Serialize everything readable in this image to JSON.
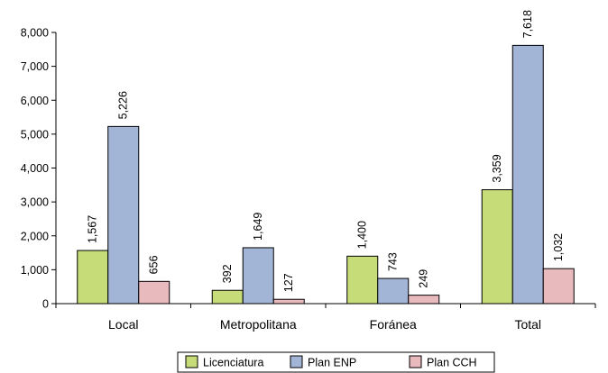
{
  "chart_data": {
    "type": "bar",
    "categories": [
      "Local",
      "Metropolitana",
      "Foránea",
      "Total"
    ],
    "series": [
      {
        "name": "Licenciatura",
        "values": [
          1567,
          392,
          1400,
          3359
        ],
        "labels": [
          "1,567",
          "392",
          "1,400",
          "3,359"
        ],
        "color": "#c5dc78"
      },
      {
        "name": "Plan ENP",
        "values": [
          5226,
          1649,
          743,
          7618
        ],
        "labels": [
          "5,226",
          "1,649",
          "743",
          "7,618"
        ],
        "color": "#a3b5d6"
      },
      {
        "name": "Plan CCH",
        "values": [
          656,
          127,
          249,
          1032
        ],
        "labels": [
          "656",
          "127",
          "249",
          "1,032"
        ],
        "color": "#e8b9bd"
      }
    ],
    "ylim": [
      0,
      8000
    ],
    "yticks": [
      0,
      1000,
      2000,
      3000,
      4000,
      5000,
      6000,
      7000,
      8000
    ],
    "ytick_labels": [
      "0",
      "1,000",
      "2,000",
      "3,000",
      "4,000",
      "5,000",
      "6,000",
      "7,000",
      "8,000"
    ],
    "grid": false,
    "legend_position": "bottom"
  }
}
